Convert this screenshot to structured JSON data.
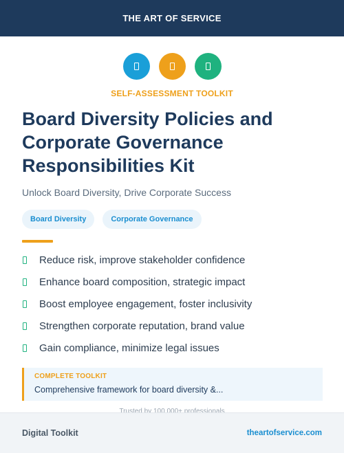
{
  "header": {
    "brand": "THE ART OF SERVICE"
  },
  "icons": [
    {
      "name": "document-icon",
      "color": "#1a9fd8"
    },
    {
      "name": "document-icon",
      "color": "#eea01b"
    },
    {
      "name": "document-icon",
      "color": "#1fb27f"
    }
  ],
  "kicker": "SELF-ASSESSMENT TOOLKIT",
  "title": "Board Diversity Policies and Corporate Governance Responsibilities Kit",
  "subtitle": "Unlock Board Diversity, Drive Corporate Success",
  "tags": [
    "Board Diversity",
    "Corporate Governance"
  ],
  "benefits": [
    "Reduce risk, improve stakeholder confidence",
    "Enhance board composition, strategic impact",
    "Boost employee engagement, foster inclusivity",
    "Strengthen corporate reputation, brand value",
    "Gain compliance, minimize legal issues"
  ],
  "callout": {
    "label": "COMPLETE TOOLKIT",
    "text": "Comprehensive framework for board diversity &..."
  },
  "trusted": "Trusted by 100,000+ professionals",
  "footer": {
    "left": "Digital Toolkit",
    "right": "theartofservice.com"
  },
  "colors": {
    "navy": "#1e3a5c",
    "orange": "#eea01b",
    "blue": "#1a9fd8",
    "green": "#1fb27f"
  }
}
